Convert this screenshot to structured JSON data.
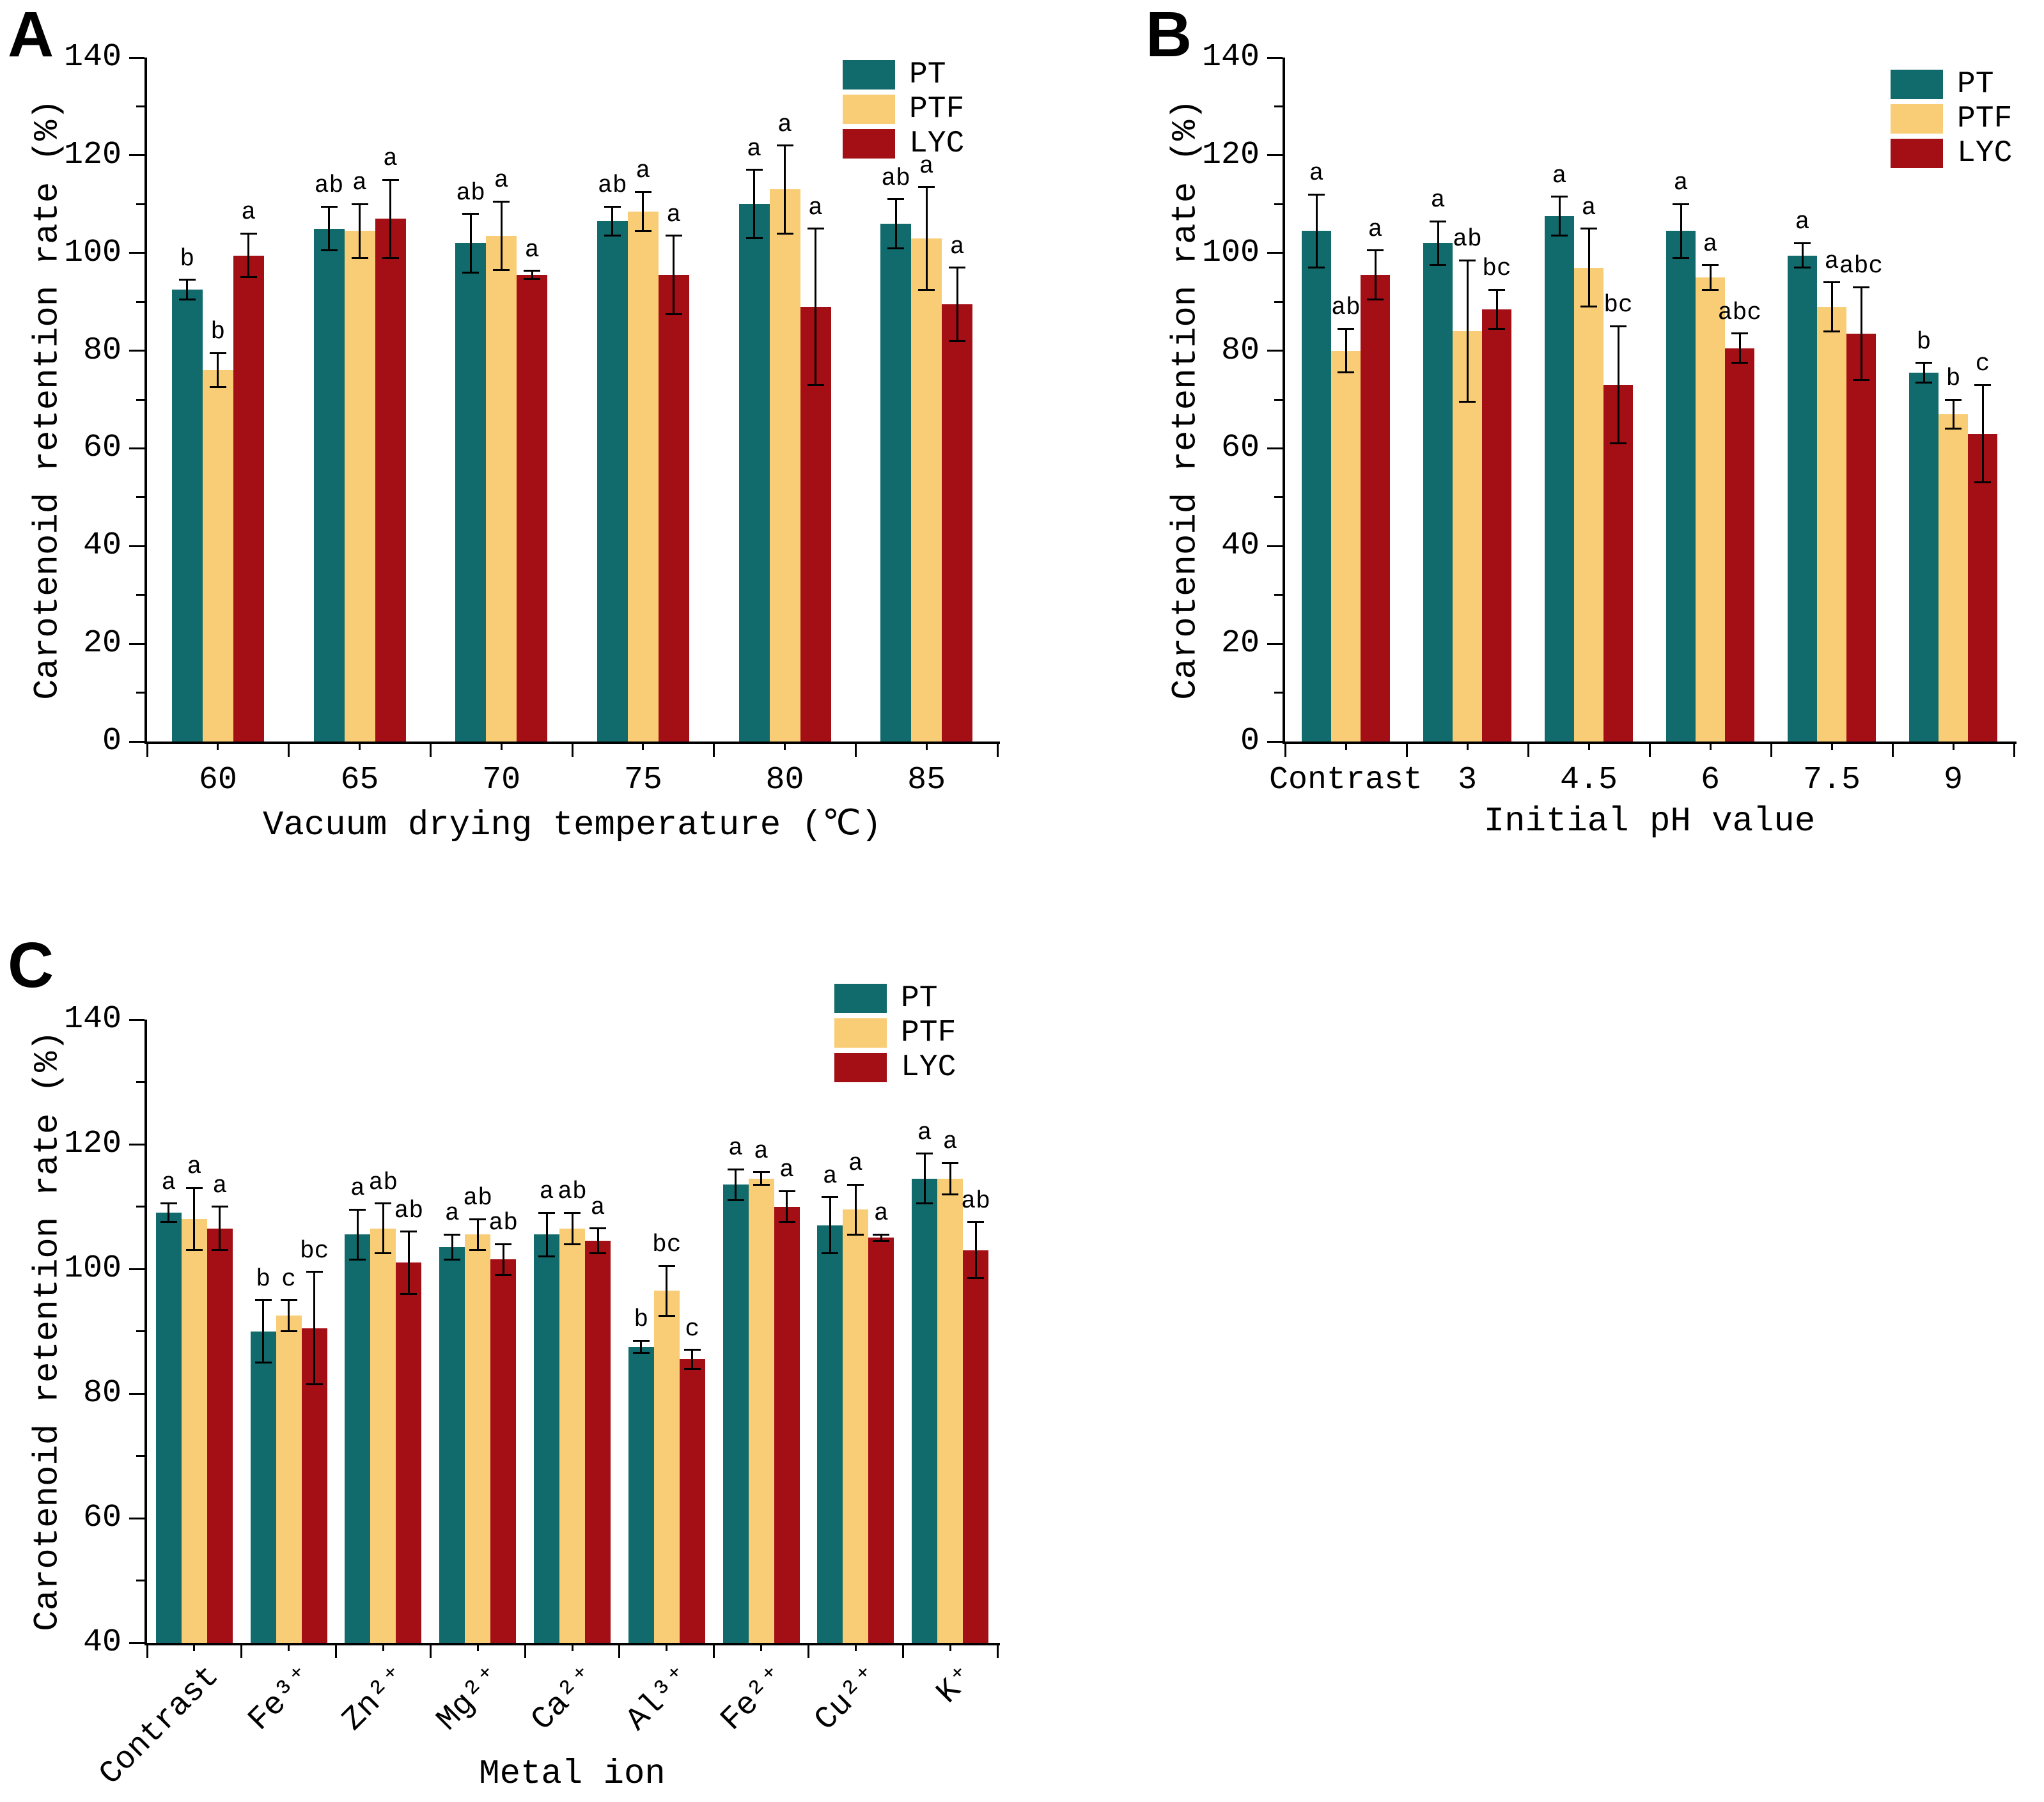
{
  "figure": {
    "background": "#ffffff",
    "text_color": "#000000",
    "series_colors": {
      "PT": "#116a6c",
      "PTF": "#f9cd76",
      "LYC": "#a40f16"
    },
    "legend_labels": [
      "PT",
      "PTF",
      "LYC"
    ]
  },
  "chart_data": [
    {
      "type": "bar",
      "panel_label": "A",
      "ylabel": "Carotenoid retention rate (%)",
      "xlabel": "Vacuum drying temperature (℃)",
      "ylim": [
        0,
        140
      ],
      "ytick_major_step": 20,
      "ytick_minor_step": 10,
      "grid": false,
      "legend_position": "top-right-inside",
      "categories": [
        "60",
        "65",
        "70",
        "75",
        "80",
        "85"
      ],
      "series": [
        {
          "name": "PT",
          "values": [
            92.5,
            105,
            102,
            106.5,
            110,
            106
          ],
          "errors": [
            2,
            4.5,
            6,
            3,
            7,
            5
          ],
          "letters": [
            "b",
            "ab",
            "ab",
            "ab",
            "a",
            "ab"
          ]
        },
        {
          "name": "PTF",
          "values": [
            76,
            104.5,
            103.5,
            108.5,
            113,
            103
          ],
          "errors": [
            3.5,
            5.5,
            7,
            4,
            9,
            10.5
          ],
          "letters": [
            "b",
            "a",
            "a",
            "a",
            "a",
            "a"
          ]
        },
        {
          "name": "LYC",
          "values": [
            99.5,
            107,
            95.5,
            95.5,
            89,
            89.5
          ],
          "errors": [
            4.5,
            8,
            0.8,
            8,
            16,
            7.5
          ],
          "letters": [
            "a",
            "a",
            "a",
            "a",
            "a",
            "a"
          ]
        }
      ]
    },
    {
      "type": "bar",
      "panel_label": "B",
      "ylabel": "Carotenoid retention rate (%)",
      "xlabel": "Initial pH value",
      "ylim": [
        0,
        140
      ],
      "ytick_major_step": 20,
      "ytick_minor_step": 10,
      "grid": false,
      "legend_position": "top-right-inside",
      "categories": [
        "Contrast",
        "3",
        "4.5",
        "6",
        "7.5",
        "9"
      ],
      "series": [
        {
          "name": "PT",
          "values": [
            104.5,
            102,
            107.5,
            104.5,
            99.5,
            75.5
          ],
          "errors": [
            7.5,
            4.5,
            4,
            5.5,
            2.5,
            2
          ],
          "letters": [
            "a",
            "a",
            "a",
            "a",
            "a",
            "b"
          ]
        },
        {
          "name": "PTF",
          "values": [
            80,
            84,
            97,
            95,
            89,
            67
          ],
          "errors": [
            4.5,
            14.5,
            8,
            2.5,
            5,
            3
          ],
          "letters": [
            "ab",
            "ab",
            "a",
            "a",
            "a",
            "b"
          ]
        },
        {
          "name": "LYC",
          "values": [
            95.5,
            88.5,
            73,
            80.5,
            83.5,
            63
          ],
          "errors": [
            5,
            4,
            12,
            3,
            9.5,
            10
          ],
          "letters": [
            "a",
            "bc",
            "bc",
            "abc",
            "abc",
            "c"
          ]
        }
      ]
    },
    {
      "type": "bar",
      "panel_label": "C",
      "ylabel": "Carotenoid retention rate (%)",
      "xlabel": "Metal ion",
      "ylim": [
        40,
        140
      ],
      "ytick_major_step": 20,
      "ytick_minor_step": 10,
      "grid": false,
      "legend_position": "top-right-inside",
      "categories": [
        "Contrast",
        "Fe³⁺",
        "Zn²⁺",
        "Mg²⁺",
        "Ca²⁺",
        "Al³⁺",
        "Fe²⁺",
        "Cu²⁺",
        "K⁺"
      ],
      "series": [
        {
          "name": "PT",
          "values": [
            109,
            90,
            105.5,
            103.5,
            105.5,
            87.5,
            113.5,
            107,
            114.5
          ],
          "errors": [
            1.5,
            5,
            4,
            2,
            3.5,
            1,
            2.5,
            4.5,
            4
          ],
          "letters": [
            "a",
            "b",
            "a",
            "a",
            "a",
            "b",
            "a",
            "a",
            "a"
          ]
        },
        {
          "name": "PTF",
          "values": [
            108,
            92.5,
            106.5,
            105.5,
            106.5,
            96.5,
            114.5,
            109.5,
            114.5
          ],
          "errors": [
            5,
            2.5,
            4,
            2.5,
            2.5,
            4,
            1,
            4,
            2.5
          ],
          "letters": [
            "a",
            "c",
            "ab",
            "ab",
            "ab",
            "bc",
            "a",
            "a",
            "a"
          ]
        },
        {
          "name": "LYC",
          "values": [
            106.5,
            90.5,
            101,
            101.5,
            104.5,
            85.5,
            110,
            105,
            103
          ],
          "errors": [
            3.5,
            9,
            5,
            2.5,
            2,
            1.5,
            2.5,
            0.5,
            4.5
          ],
          "letters": [
            "a",
            "bc",
            "ab",
            "ab",
            "a",
            "c",
            "a",
            "a",
            "ab"
          ]
        }
      ]
    }
  ]
}
